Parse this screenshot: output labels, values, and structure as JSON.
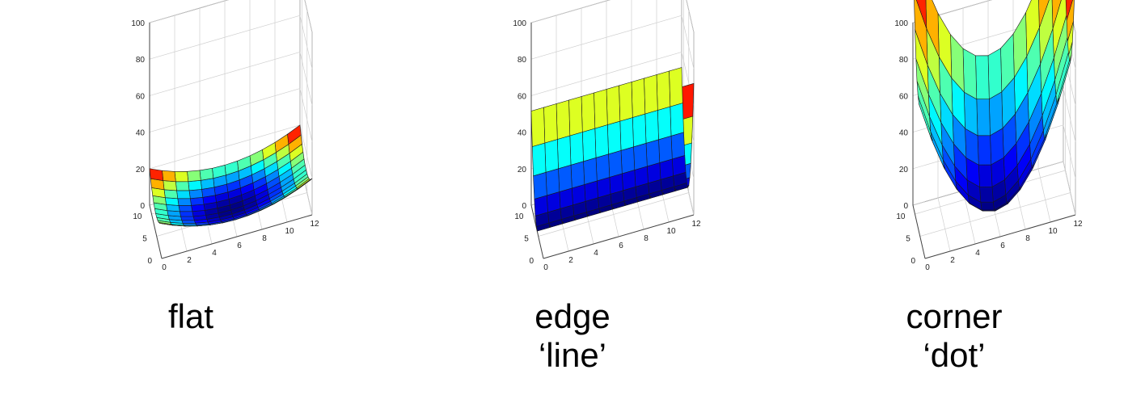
{
  "chart_data": [
    {
      "type": "surface",
      "shape": "flat",
      "caption": [
        "flat"
      ],
      "zlim": [
        0,
        100
      ],
      "xlim": [
        0,
        12
      ],
      "ylim": [
        0,
        12
      ],
      "z_ticks": [
        "0",
        "20",
        "40",
        "60",
        "80",
        "100"
      ],
      "x_ticks": [
        "0",
        "2",
        "4",
        "6",
        "8",
        "10",
        "12"
      ],
      "y_ticks": [
        "0",
        "5",
        "10"
      ],
      "grid": true,
      "z_max_value": 20
    },
    {
      "type": "surface",
      "shape": "edge",
      "caption": [
        "edge",
        "‘line’"
      ],
      "zlim": [
        0,
        100
      ],
      "xlim": [
        0,
        12
      ],
      "ylim": [
        0,
        12
      ],
      "z_ticks": [
        "0",
        "20",
        "40",
        "60",
        "80",
        "100"
      ],
      "x_ticks": [
        "0",
        "2",
        "4",
        "6",
        "8",
        "10",
        "12"
      ],
      "y_ticks": [
        "0",
        "5",
        "10"
      ],
      "grid": true,
      "z_max_value": 72
    },
    {
      "type": "surface",
      "shape": "corner",
      "caption": [
        "corner",
        "‘dot’"
      ],
      "zlim": [
        0,
        100
      ],
      "xlim": [
        0,
        12
      ],
      "ylim": [
        0,
        12
      ],
      "z_ticks": [
        "0",
        "20",
        "40",
        "60",
        "80",
        "100"
      ],
      "x_ticks": [
        "0",
        "2",
        "4",
        "6",
        "8",
        "10",
        "12"
      ],
      "y_ticks": [
        "0",
        "5",
        "10"
      ],
      "grid": true,
      "z_max_value": 140
    }
  ],
  "colormap": "jet"
}
